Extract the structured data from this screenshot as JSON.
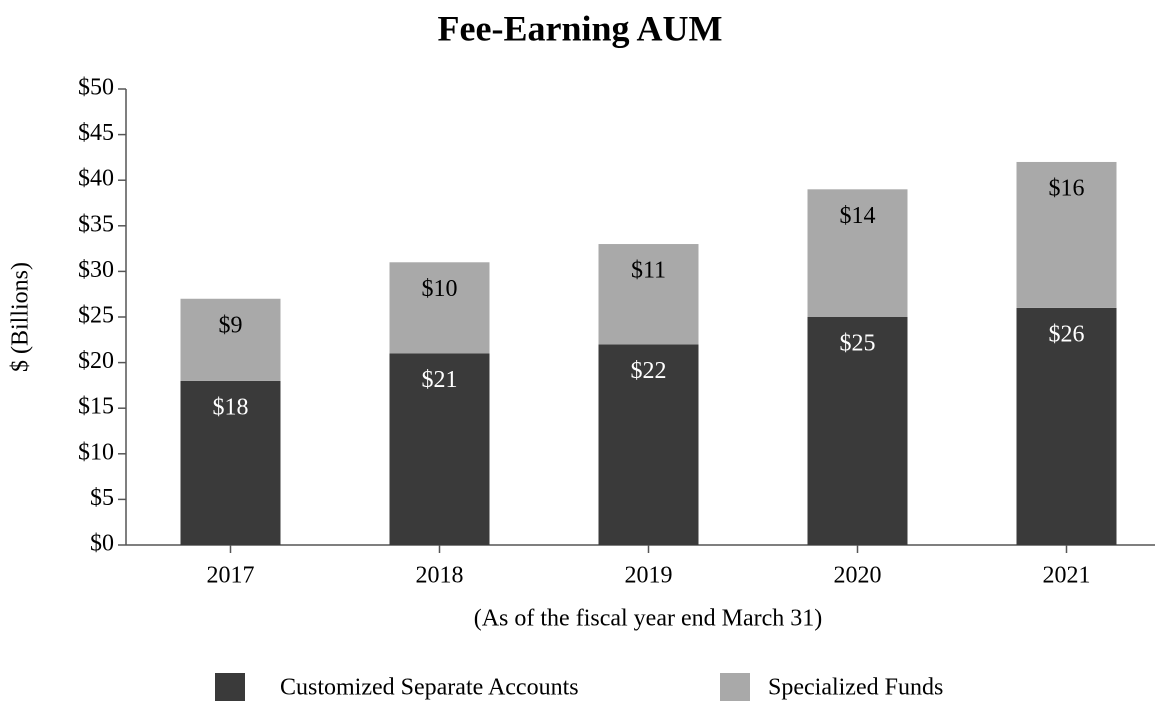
{
  "chart_data": {
    "type": "stacked_bar",
    "title": "Fee-Earning AUM",
    "y_label": "$ (Billions)",
    "x_label": "(As of the fiscal year end March 31)",
    "categories": [
      "2017",
      "2018",
      "2019",
      "2020",
      "2021"
    ],
    "series": [
      {
        "name": "Customized Separate Accounts",
        "color": "#3a3a3a",
        "label_color": "#ffffff",
        "values": [
          18,
          21,
          22,
          25,
          26
        ],
        "value_labels": [
          "$18",
          "$21",
          "$22",
          "$25",
          "$26"
        ]
      },
      {
        "name": "Specialized Funds",
        "color": "#a9a9a9",
        "label_color": "#000000",
        "values": [
          9,
          10,
          11,
          14,
          16
        ],
        "value_labels": [
          "$9",
          "$10",
          "$11",
          "$14",
          "$16"
        ]
      }
    ],
    "ylim": [
      0,
      50
    ],
    "yticks": [
      {
        "value": 0,
        "label": "$0"
      },
      {
        "value": 5,
        "label": "$5"
      },
      {
        "value": 10,
        "label": "$10"
      },
      {
        "value": 15,
        "label": "$15"
      },
      {
        "value": 20,
        "label": "$20"
      },
      {
        "value": 25,
        "label": "$25"
      },
      {
        "value": 30,
        "label": "$30"
      },
      {
        "value": 35,
        "label": "$35"
      },
      {
        "value": 40,
        "label": "$40"
      },
      {
        "value": 45,
        "label": "$45"
      },
      {
        "value": 50,
        "label": "$50"
      }
    ],
    "grid": false,
    "legend": "bottom"
  }
}
